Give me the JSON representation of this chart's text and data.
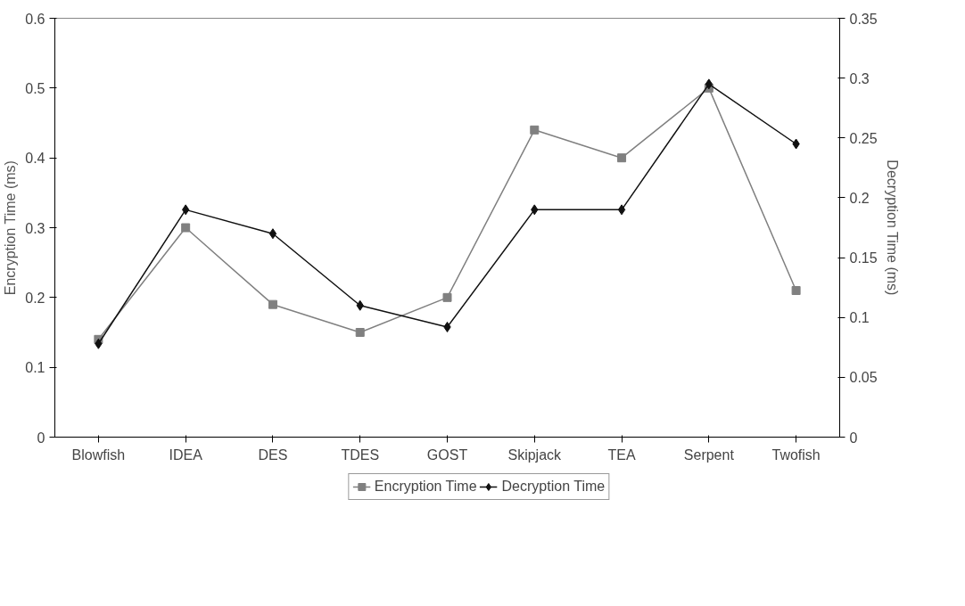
{
  "chart_data": {
    "type": "line",
    "ylabel": "Encryption Time (ms)",
    "y2label": "Decryption Time (ms)",
    "categories": [
      "Blowfish",
      "IDEA",
      "DES",
      "TDES",
      "GOST",
      "Skipjack",
      "TEA",
      "Serpent",
      "Twofish"
    ],
    "series": [
      {
        "name": "Encryption Time",
        "color": "#808080",
        "marker": "square",
        "values": [
          0.14,
          0.3,
          0.19,
          0.15,
          0.2,
          0.44,
          0.4,
          0.5,
          0.21
        ]
      },
      {
        "name": "Decryption Time",
        "color": "#111111",
        "marker": "diamond",
        "axis": "y2",
        "values": [
          0.078,
          0.19,
          0.17,
          0.11,
          0.092,
          0.19,
          0.19,
          0.295,
          0.245
        ]
      }
    ],
    "ylim": [
      0,
      0.6
    ],
    "yticks": [
      0,
      0.1,
      0.2,
      0.3,
      0.4,
      0.5,
      0.6
    ],
    "y2lim": [
      0,
      0.35
    ],
    "y2ticks": [
      0,
      0.05,
      0.1,
      0.15,
      0.2,
      0.25,
      0.3,
      0.35
    ],
    "grid": false,
    "legend": "bottom"
  }
}
